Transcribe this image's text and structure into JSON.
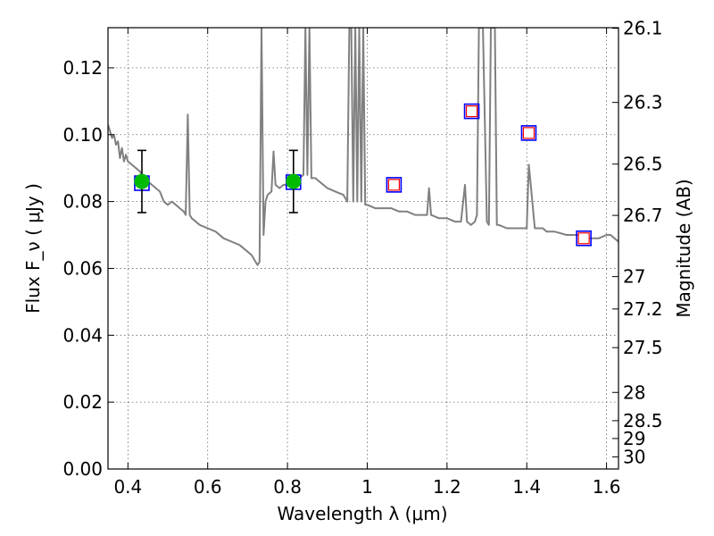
{
  "chart_data": {
    "type": "line",
    "title": "",
    "xlabel": "Wavelength  λ (μm)",
    "ylabel": "Flux  F_ν  ( μJy )",
    "y2label": "Magnitude (AB)",
    "xlim": [
      0.35,
      1.63
    ],
    "ylim": [
      0.0,
      0.132
    ],
    "grid": true,
    "x_ticks": [
      0.4,
      0.6,
      0.8,
      1.0,
      1.2,
      1.4,
      1.6
    ],
    "x_tick_labels": [
      "0.4",
      "0.6",
      "0.8",
      "1",
      "1.2",
      "1.4",
      "1.6"
    ],
    "y_ticks": [
      0.0,
      0.02,
      0.04,
      0.06,
      0.08,
      0.1,
      0.12
    ],
    "y_tick_labels": [
      "0.00",
      "0.02",
      "0.04",
      "0.06",
      "0.08",
      "0.10",
      "0.12"
    ],
    "y2_ticks": [
      26.1,
      26.3,
      26.5,
      26.7,
      27,
      27.2,
      27.5,
      28,
      28.5,
      29,
      30
    ],
    "y2_tick_labels": [
      "26.1",
      "26.3",
      "26.5",
      "26.7",
      "27",
      "27.2",
      "27.5",
      "28",
      "28.5",
      "29",
      "30"
    ],
    "series": [
      {
        "kind": "line",
        "color": "#808080",
        "points": [
          [
            0.35,
            0.103
          ],
          [
            0.36,
            0.099
          ],
          [
            0.365,
            0.1
          ],
          [
            0.37,
            0.097
          ],
          [
            0.375,
            0.098
          ],
          [
            0.38,
            0.093
          ],
          [
            0.385,
            0.096
          ],
          [
            0.39,
            0.092
          ],
          [
            0.395,
            0.094
          ],
          [
            0.4,
            0.092
          ],
          [
            0.41,
            0.091
          ],
          [
            0.42,
            0.09
          ],
          [
            0.43,
            0.089
          ],
          [
            0.44,
            0.087
          ],
          [
            0.45,
            0.086
          ],
          [
            0.46,
            0.085
          ],
          [
            0.47,
            0.084
          ],
          [
            0.48,
            0.083
          ],
          [
            0.49,
            0.08
          ],
          [
            0.5,
            0.079
          ],
          [
            0.51,
            0.08
          ],
          [
            0.52,
            0.079
          ],
          [
            0.53,
            0.078
          ],
          [
            0.54,
            0.077
          ],
          [
            0.545,
            0.076
          ],
          [
            0.55,
            0.106
          ],
          [
            0.555,
            0.076
          ],
          [
            0.56,
            0.075
          ],
          [
            0.58,
            0.073
          ],
          [
            0.6,
            0.072
          ],
          [
            0.62,
            0.071
          ],
          [
            0.64,
            0.069
          ],
          [
            0.66,
            0.068
          ],
          [
            0.68,
            0.067
          ],
          [
            0.7,
            0.065
          ],
          [
            0.71,
            0.064
          ],
          [
            0.72,
            0.062
          ],
          [
            0.725,
            0.061
          ],
          [
            0.73,
            0.062
          ],
          [
            0.735,
            0.132
          ],
          [
            0.74,
            0.07
          ],
          [
            0.745,
            0.08
          ],
          [
            0.75,
            0.082
          ],
          [
            0.76,
            0.083
          ],
          [
            0.765,
            0.095
          ],
          [
            0.77,
            0.085
          ],
          [
            0.78,
            0.084
          ],
          [
            0.79,
            0.085
          ],
          [
            0.8,
            0.085
          ],
          [
            0.81,
            0.086
          ],
          [
            0.82,
            0.087
          ],
          [
            0.83,
            0.087
          ],
          [
            0.84,
            0.088
          ],
          [
            0.845,
            0.132
          ],
          [
            0.85,
            0.088
          ],
          [
            0.855,
            0.132
          ],
          [
            0.86,
            0.087
          ],
          [
            0.87,
            0.087
          ],
          [
            0.88,
            0.086
          ],
          [
            0.89,
            0.085
          ],
          [
            0.9,
            0.084
          ],
          [
            0.92,
            0.083
          ],
          [
            0.94,
            0.082
          ],
          [
            0.95,
            0.08
          ],
          [
            0.955,
            0.132
          ],
          [
            0.96,
            0.132
          ],
          [
            0.965,
            0.08
          ],
          [
            0.97,
            0.132
          ],
          [
            0.975,
            0.08
          ],
          [
            0.98,
            0.132
          ],
          [
            0.985,
            0.08
          ],
          [
            0.99,
            0.132
          ],
          [
            0.995,
            0.079
          ],
          [
            1.0,
            0.079
          ],
          [
            1.02,
            0.078
          ],
          [
            1.04,
            0.078
          ],
          [
            1.06,
            0.078
          ],
          [
            1.08,
            0.077
          ],
          [
            1.1,
            0.077
          ],
          [
            1.12,
            0.076
          ],
          [
            1.14,
            0.076
          ],
          [
            1.15,
            0.076
          ],
          [
            1.155,
            0.084
          ],
          [
            1.16,
            0.076
          ],
          [
            1.18,
            0.075
          ],
          [
            1.2,
            0.075
          ],
          [
            1.22,
            0.074
          ],
          [
            1.235,
            0.074
          ],
          [
            1.245,
            0.085
          ],
          [
            1.25,
            0.074
          ],
          [
            1.26,
            0.073
          ],
          [
            1.27,
            0.074
          ],
          [
            1.275,
            0.076
          ],
          [
            1.28,
            0.132
          ],
          [
            1.29,
            0.132
          ],
          [
            1.3,
            0.074
          ],
          [
            1.305,
            0.073
          ],
          [
            1.31,
            0.132
          ],
          [
            1.32,
            0.132
          ],
          [
            1.325,
            0.073
          ],
          [
            1.33,
            0.073
          ],
          [
            1.35,
            0.072
          ],
          [
            1.37,
            0.072
          ],
          [
            1.39,
            0.072
          ],
          [
            1.4,
            0.072
          ],
          [
            1.405,
            0.091
          ],
          [
            1.41,
            0.085
          ],
          [
            1.42,
            0.072
          ],
          [
            1.43,
            0.072
          ],
          [
            1.44,
            0.072
          ],
          [
            1.45,
            0.071
          ],
          [
            1.47,
            0.071
          ],
          [
            1.5,
            0.07
          ],
          [
            1.53,
            0.07
          ],
          [
            1.56,
            0.069
          ],
          [
            1.58,
            0.069
          ],
          [
            1.6,
            0.07
          ],
          [
            1.61,
            0.07
          ],
          [
            1.62,
            0.069
          ],
          [
            1.63,
            0.068
          ]
        ]
      },
      {
        "kind": "model-photometry",
        "marker": "square",
        "edge_color": "#0000ff",
        "points": [
          [
            0.435,
            0.0855
          ],
          [
            0.815,
            0.0858
          ],
          [
            1.067,
            0.085
          ],
          [
            1.262,
            0.107
          ],
          [
            1.405,
            0.1005
          ],
          [
            1.543,
            0.069
          ]
        ]
      },
      {
        "kind": "predicted-photometry",
        "marker": "square",
        "edge_color": "#ff0000",
        "points": [
          [
            1.067,
            0.085
          ],
          [
            1.262,
            0.107
          ],
          [
            1.405,
            0.1005
          ],
          [
            1.543,
            0.069
          ]
        ]
      },
      {
        "kind": "observed-photometry",
        "marker": "circle",
        "color": "#00bb00",
        "points": [
          [
            0.435,
            0.086,
            0.0093
          ],
          [
            0.815,
            0.086,
            0.0093
          ]
        ]
      }
    ]
  }
}
